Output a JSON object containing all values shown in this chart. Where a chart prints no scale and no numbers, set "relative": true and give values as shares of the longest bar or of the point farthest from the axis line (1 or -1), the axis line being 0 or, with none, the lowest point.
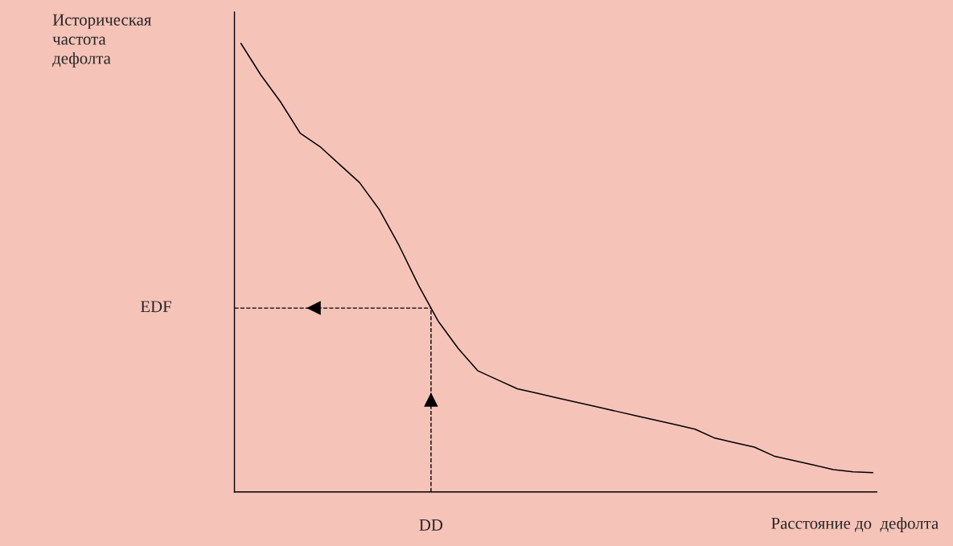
{
  "chart_data": {
    "type": "line",
    "relative": true,
    "ylabel": "Историческая\nчастота\nдефолта",
    "xlabel": "Расстояние до  дефолта",
    "categories": [
      null,
      null,
      null,
      null,
      null,
      null,
      null,
      null,
      null,
      null,
      null,
      null,
      null,
      null,
      null,
      null,
      null,
      null,
      null,
      null,
      null,
      null,
      null,
      null,
      null,
      null,
      null,
      null,
      null,
      null,
      null,
      null,
      null
    ],
    "series": [
      {
        "color": "#000000",
        "values": [
          1.0,
          0.93,
          0.87,
          0.8,
          0.77,
          0.73,
          0.69,
          0.63,
          0.55,
          0.46,
          0.38,
          0.32,
          0.27,
          0.25,
          0.23,
          0.22,
          0.21,
          0.2,
          0.19,
          0.18,
          0.17,
          0.16,
          0.15,
          0.14,
          0.12,
          0.11,
          0.1,
          0.08,
          0.07,
          0.06,
          0.05,
          0.045,
          0.043
        ]
      }
    ],
    "ref_lines": [
      {
        "axis": "y",
        "value": 0.41,
        "label": "EDF",
        "line_style": "dashed",
        "color": "#000000"
      }
    ],
    "annotations": [
      "DD"
    ],
    "legend": false,
    "marker": "none",
    "line_style": "solid"
  }
}
